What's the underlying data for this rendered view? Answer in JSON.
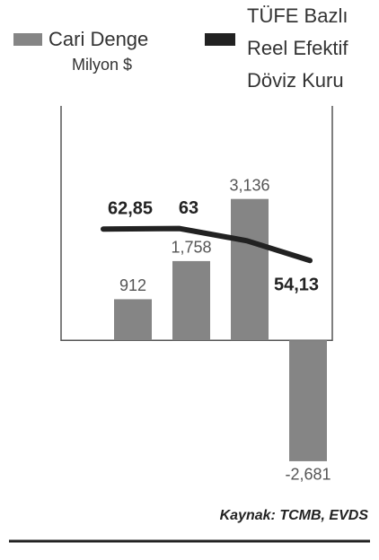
{
  "chart_data": {
    "type": "bar",
    "categories": [
      null,
      null,
      null,
      null
    ],
    "series": [
      {
        "name": "Cari Denge",
        "unit": "Milyon $",
        "type": "bar",
        "color": "#858585",
        "values": [
          912,
          1758,
          3136,
          -2681
        ],
        "value_labels": [
          "912",
          "1,758",
          "3,136",
          "-2,681"
        ]
      },
      {
        "name": "TÜFE Bazlı Reel Efektif Döviz Kuru",
        "type": "line",
        "color": "#222222",
        "axis": "y2",
        "values": [
          62.85,
          63,
          59.6,
          54.13
        ],
        "value_labels": [
          "62,85",
          "63",
          null,
          "54,13"
        ]
      }
    ],
    "ylim": [
      -3200,
      5200
    ],
    "y2lim": [
      -8,
      97
    ],
    "source": "Kaynak: TCMB, EVDS"
  }
}
